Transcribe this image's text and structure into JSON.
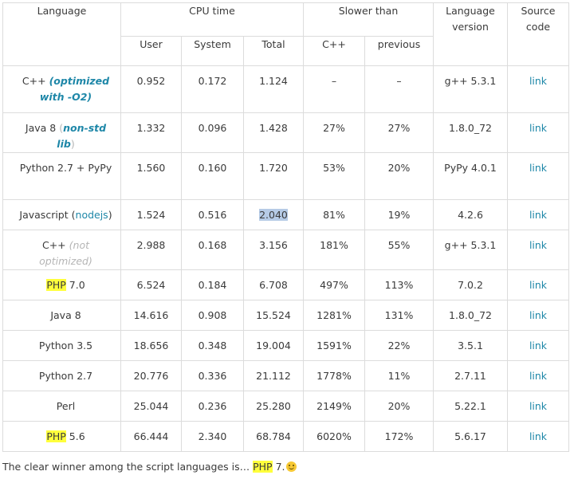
{
  "headers": {
    "language": "Language",
    "cpu_time": "CPU time",
    "slower_than": "Slower than",
    "language_version": "Language version",
    "source_code": "Source code",
    "user": "User",
    "system": "System",
    "total": "Total",
    "cpp": "C++",
    "previous": "previous"
  },
  "rows": [
    {
      "lang": "C++ ",
      "sub": "(optimized with -O2)",
      "user": "0.952",
      "system": "0.172",
      "total": "1.124",
      "cpp": "–",
      "prev": "–",
      "version": "g++ 5.3.1",
      "link": "link"
    },
    {
      "lang": "Java 8 ",
      "sub": "non-std lib",
      "user": "1.332",
      "system": "0.096",
      "total": "1.428",
      "cpp": "27%",
      "prev": "27%",
      "version": "1.8.0_72",
      "link": "link"
    },
    {
      "lang": "Python 2.7 + PyPy",
      "user": "1.560",
      "system": "0.160",
      "total": "1.720",
      "cpp": "53%",
      "prev": "20%",
      "version": "PyPy 4.0.1",
      "link": "link"
    },
    {
      "lang": "Javascript ",
      "sub": "nodejs",
      "user": "1.524",
      "system": "0.516",
      "total": "2.040",
      "cpp": "81%",
      "prev": "19%",
      "version": "4.2.6",
      "link": "link"
    },
    {
      "lang": "C++ ",
      "sub": "(not optimized)",
      "user": "2.988",
      "system": "0.168",
      "total": "3.156",
      "cpp": "181%",
      "prev": "55%",
      "version": "g++ 5.3.1",
      "link": "link"
    },
    {
      "lang_hl": "PHP",
      "lang": " 7.0",
      "user": "6.524",
      "system": "0.184",
      "total": "6.708",
      "cpp": "497%",
      "prev": "113%",
      "version": "7.0.2",
      "link": "link"
    },
    {
      "lang": "Java 8",
      "user": "14.616",
      "system": "0.908",
      "total": "15.524",
      "cpp": "1281%",
      "prev": "131%",
      "version": "1.8.0_72",
      "link": "link"
    },
    {
      "lang": "Python 3.5",
      "user": "18.656",
      "system": "0.348",
      "total": "19.004",
      "cpp": "1591%",
      "prev": "22%",
      "version": "3.5.1",
      "link": "link"
    },
    {
      "lang": "Python 2.7",
      "user": "20.776",
      "system": "0.336",
      "total": "21.112",
      "cpp": "1778%",
      "prev": "11%",
      "version": "2.7.11",
      "link": "link"
    },
    {
      "lang": "Perl",
      "user": "25.044",
      "system": "0.236",
      "total": "25.280",
      "cpp": "2149%",
      "prev": "20%",
      "version": "5.22.1",
      "link": "link"
    },
    {
      "lang_hl": "PHP",
      "lang": " 5.6",
      "user": "66.444",
      "system": "2.340",
      "total": "68.784",
      "cpp": "6020%",
      "prev": "172%",
      "version": "5.6.17",
      "link": "link"
    }
  ],
  "caption": {
    "text": "The clear winner among the script languages is… ",
    "hl": "PHP",
    "suffix": " 7.",
    "emoji": "smiley-icon"
  },
  "colors": {
    "link": "#1e87a8",
    "highlight": "#ffff3c",
    "selection": "#b6cbe6",
    "muted": "#b5b5b5"
  }
}
